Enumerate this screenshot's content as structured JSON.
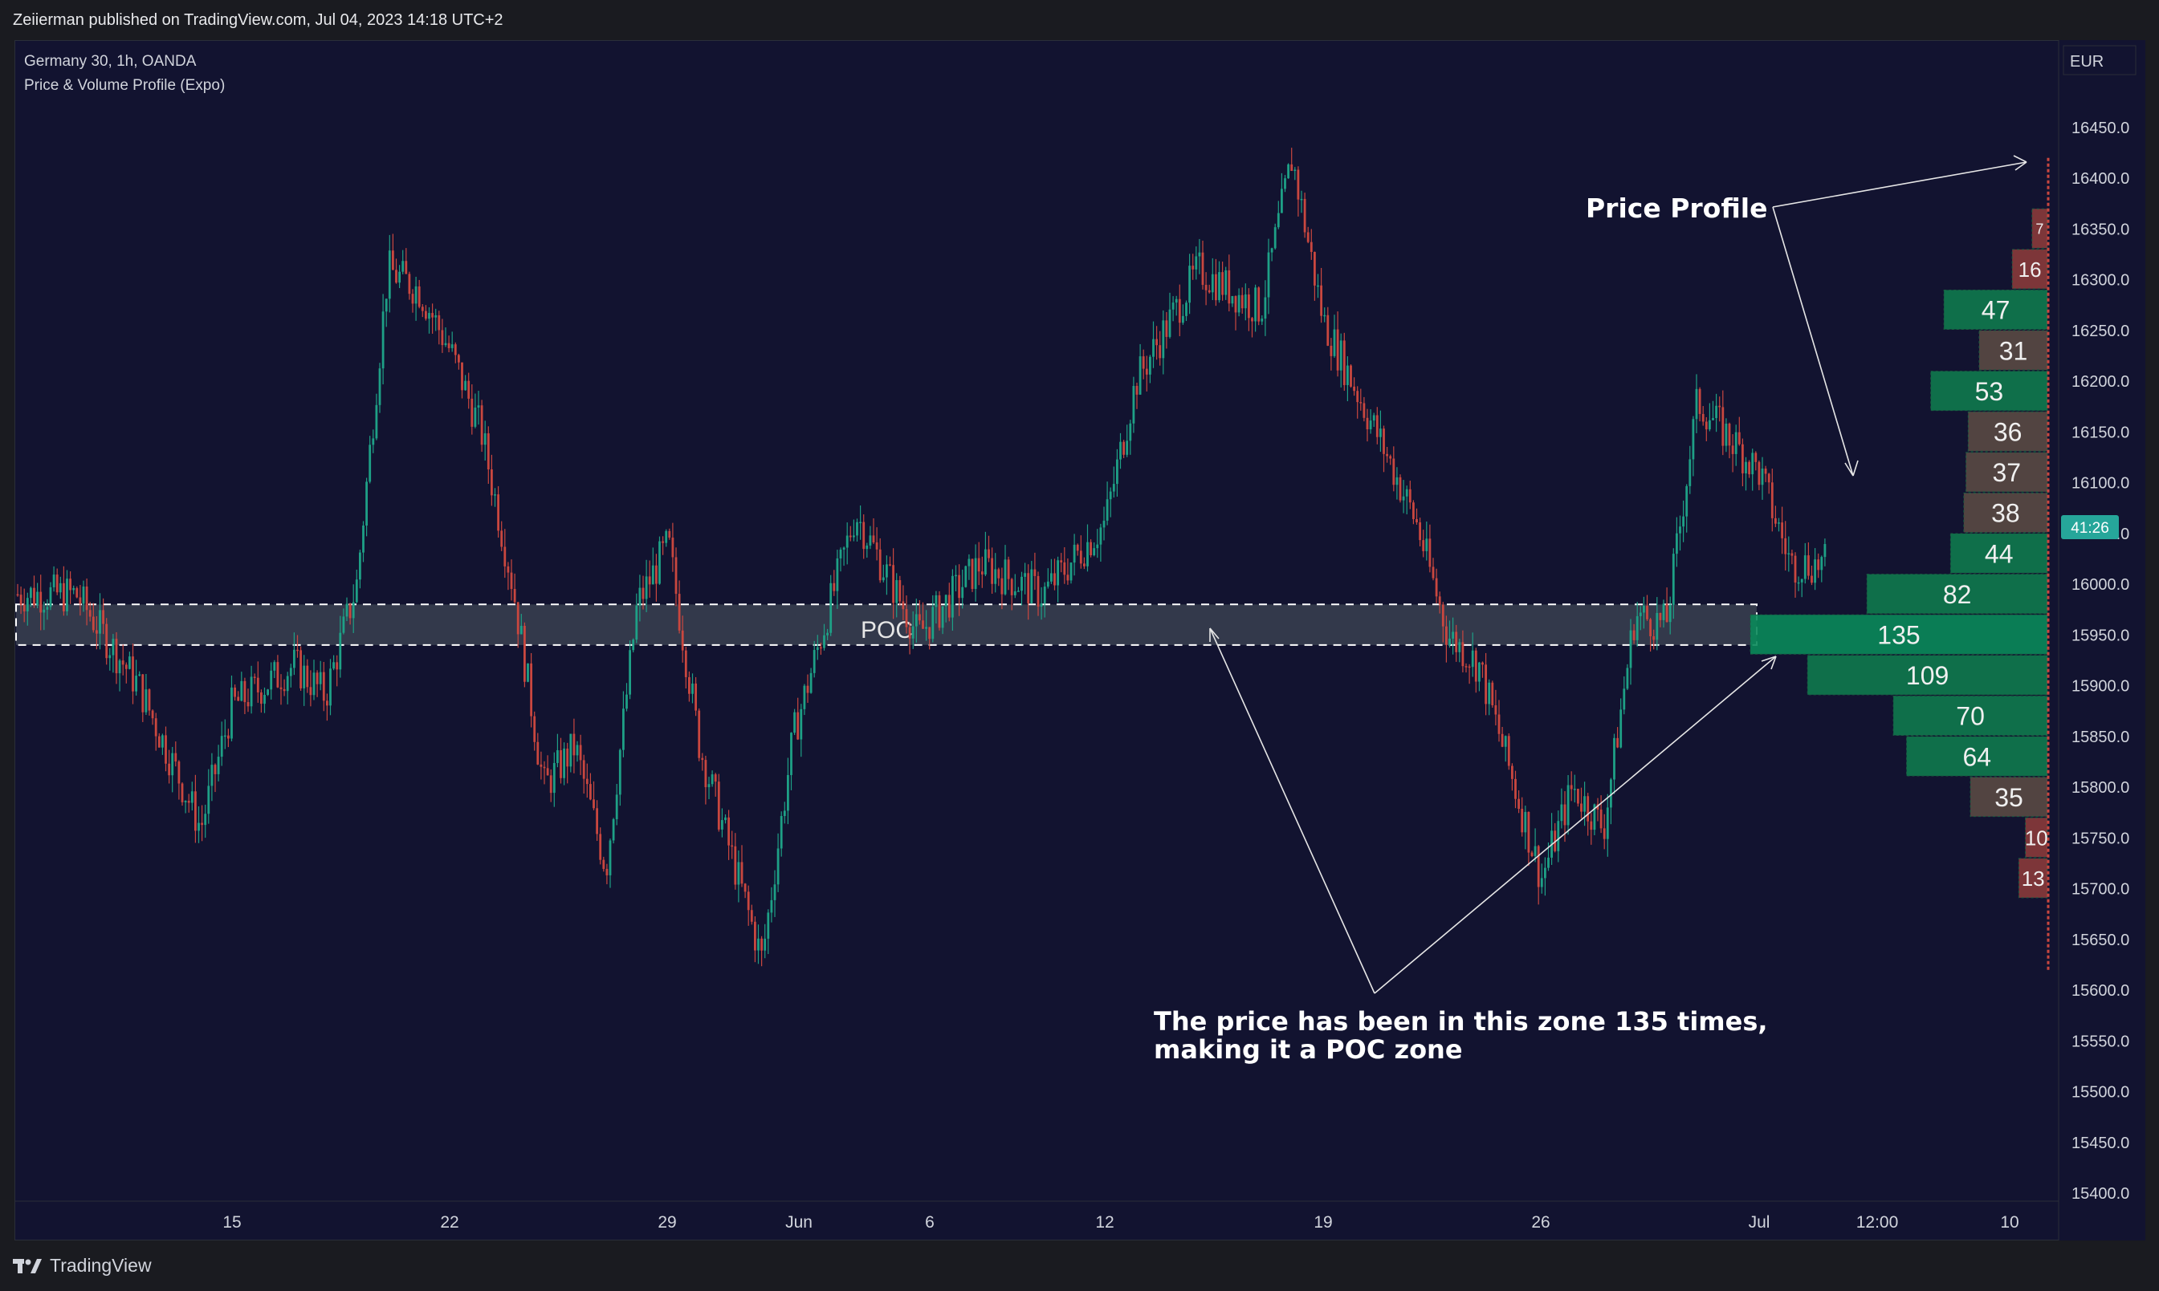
{
  "publisher": "Zeiierman published on TradingView.com, Jul 04, 2023 14:18 UTC+2",
  "legend": {
    "symbol": "Germany 30, 1h, OANDA",
    "indicator": "Price & Volume Profile (Expo)"
  },
  "currency": "EUR",
  "countdown": "41:26",
  "colors": {
    "background": "#121330",
    "bull_bar": "#1ea086",
    "bear_bar": "#c9473f",
    "profile_green": "#0f7a4e",
    "profile_green_light": "#14854f",
    "profile_brown": "#5a4a44",
    "profile_red": "#8a3b3b",
    "poc_zone": "#3a4150",
    "accent": "#26a69a"
  },
  "price_axis_labels": [
    "16450.0",
    "16400.0",
    "16350.0",
    "16300.0",
    "16250.0",
    "16200.0",
    "16150.0",
    "16100.0",
    "16050.0",
    "16000.0",
    "15950.0",
    "15900.0",
    "15850.0",
    "15800.0",
    "15750.0",
    "15700.0",
    "15650.0",
    "15600.0",
    "15550.0",
    "15500.0",
    "15450.0",
    "15400.0"
  ],
  "time_axis_labels": [
    "15",
    "22",
    "29",
    "Jun",
    "6",
    "12",
    "19",
    "26",
    "Jul",
    "12:00",
    "10"
  ],
  "poc_label": "POC",
  "annotations": {
    "price_profile": "Price Profile",
    "poc_line1": "The price has been in this zone 135 times,",
    "poc_line2": "making it a POC zone"
  },
  "brand": "TradingView",
  "chart_data": {
    "type": "candlestick",
    "title": "Germany 30, 1h, OANDA",
    "ylim": [
      15375,
      16475
    ],
    "x_range": [
      "May 10",
      "Jul 11"
    ],
    "price_path": [
      [
        "May 10",
        15990
      ],
      [
        "May 12",
        15900
      ],
      [
        "May 14",
        15760
      ],
      [
        "May 15",
        15880
      ],
      [
        "May 17",
        15920
      ],
      [
        "May 18",
        15890
      ],
      [
        "May 19",
        16000
      ],
      [
        "May 20",
        16310
      ],
      [
        "May 21",
        16290
      ],
      [
        "May 22",
        16230
      ],
      [
        "May 23",
        16150
      ],
      [
        "May 24",
        16000
      ],
      [
        "May 25",
        15800
      ],
      [
        "May 26",
        15840
      ],
      [
        "May 27",
        15720
      ],
      [
        "May 28",
        15980
      ],
      [
        "May 29",
        16040
      ],
      [
        "May 30",
        15840
      ],
      [
        "Jun 1",
        15630
      ],
      [
        "Jun 2",
        15850
      ],
      [
        "Jun 4",
        16070
      ],
      [
        "Jun 6",
        15950
      ],
      [
        "Jun 8",
        16020
      ],
      [
        "Jun 10",
        15990
      ],
      [
        "Jun 12",
        16060
      ],
      [
        "Jun 13",
        16200
      ],
      [
        "Jun 15",
        16310
      ],
      [
        "Jun 17",
        16270
      ],
      [
        "Jun 18",
        16420
      ],
      [
        "Jun 19",
        16260
      ],
      [
        "Jun 21",
        16130
      ],
      [
        "Jun 22",
        16060
      ],
      [
        "Jun 23",
        15950
      ],
      [
        "Jun 24",
        15920
      ],
      [
        "Jun 26",
        15710
      ],
      [
        "Jun 27",
        15800
      ],
      [
        "Jun 28",
        15760
      ],
      [
        "Jun 29",
        15970
      ],
      [
        "Jun 30",
        15960
      ],
      [
        "Jul 1",
        16180
      ],
      [
        "Jul 3",
        16110
      ],
      [
        "Jul 4",
        16020
      ]
    ],
    "profile": [
      {
        "price": 16350,
        "count": 7
      },
      {
        "price": 16310,
        "count": 16
      },
      {
        "price": 16270,
        "count": 47
      },
      {
        "price": 16230,
        "count": 31
      },
      {
        "price": 16190,
        "count": 53
      },
      {
        "price": 16150,
        "count": 36
      },
      {
        "price": 16110,
        "count": 37
      },
      {
        "price": 16070,
        "count": 38
      },
      {
        "price": 16030,
        "count": 44
      },
      {
        "price": 15990,
        "count": 82
      },
      {
        "price": 15950,
        "count": 135
      },
      {
        "price": 15910,
        "count": 109
      },
      {
        "price": 15870,
        "count": 70
      },
      {
        "price": 15830,
        "count": 64
      },
      {
        "price": 15790,
        "count": 35
      },
      {
        "price": 15750,
        "count": 10
      },
      {
        "price": 15710,
        "count": 13
      }
    ],
    "poc": {
      "low": 15940,
      "high": 15980,
      "count": 135
    }
  }
}
